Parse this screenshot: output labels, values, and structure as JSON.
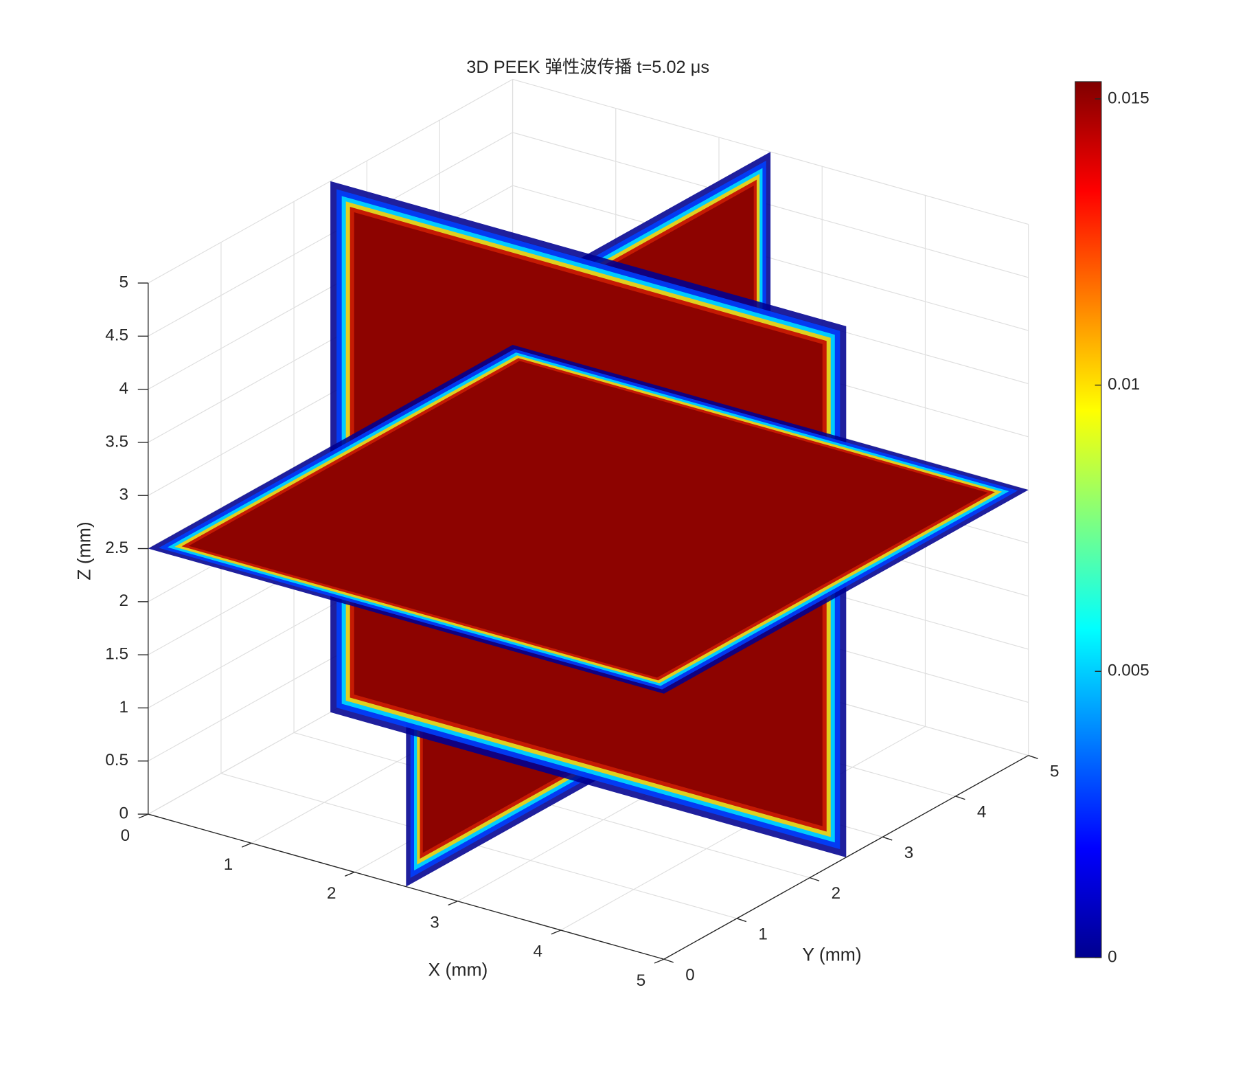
{
  "chart_data": {
    "type": "slice3d",
    "title": "3D PEEK 弹性波传播  t=5.02 μs",
    "xlabel": "X (mm)",
    "ylabel": "Y (mm)",
    "zlabel": "Z (mm)",
    "xlim": [
      0,
      5
    ],
    "ylim": [
      0,
      5
    ],
    "zlim": [
      0,
      5
    ],
    "xticks": [
      0,
      1,
      2,
      3,
      4,
      5
    ],
    "yticks": [
      0,
      1,
      2,
      3,
      4,
      5
    ],
    "zticks": [
      0,
      0.5,
      1,
      1.5,
      2,
      2.5,
      3,
      3.5,
      4,
      4.5,
      5
    ],
    "slices": {
      "x": 2.5,
      "y": 2.5,
      "z": 2.5
    },
    "colormap": "jet",
    "clim": [
      0,
      0.0153
    ],
    "cticks": [
      0,
      0.005,
      0.01,
      0.015
    ],
    "grid": true
  }
}
